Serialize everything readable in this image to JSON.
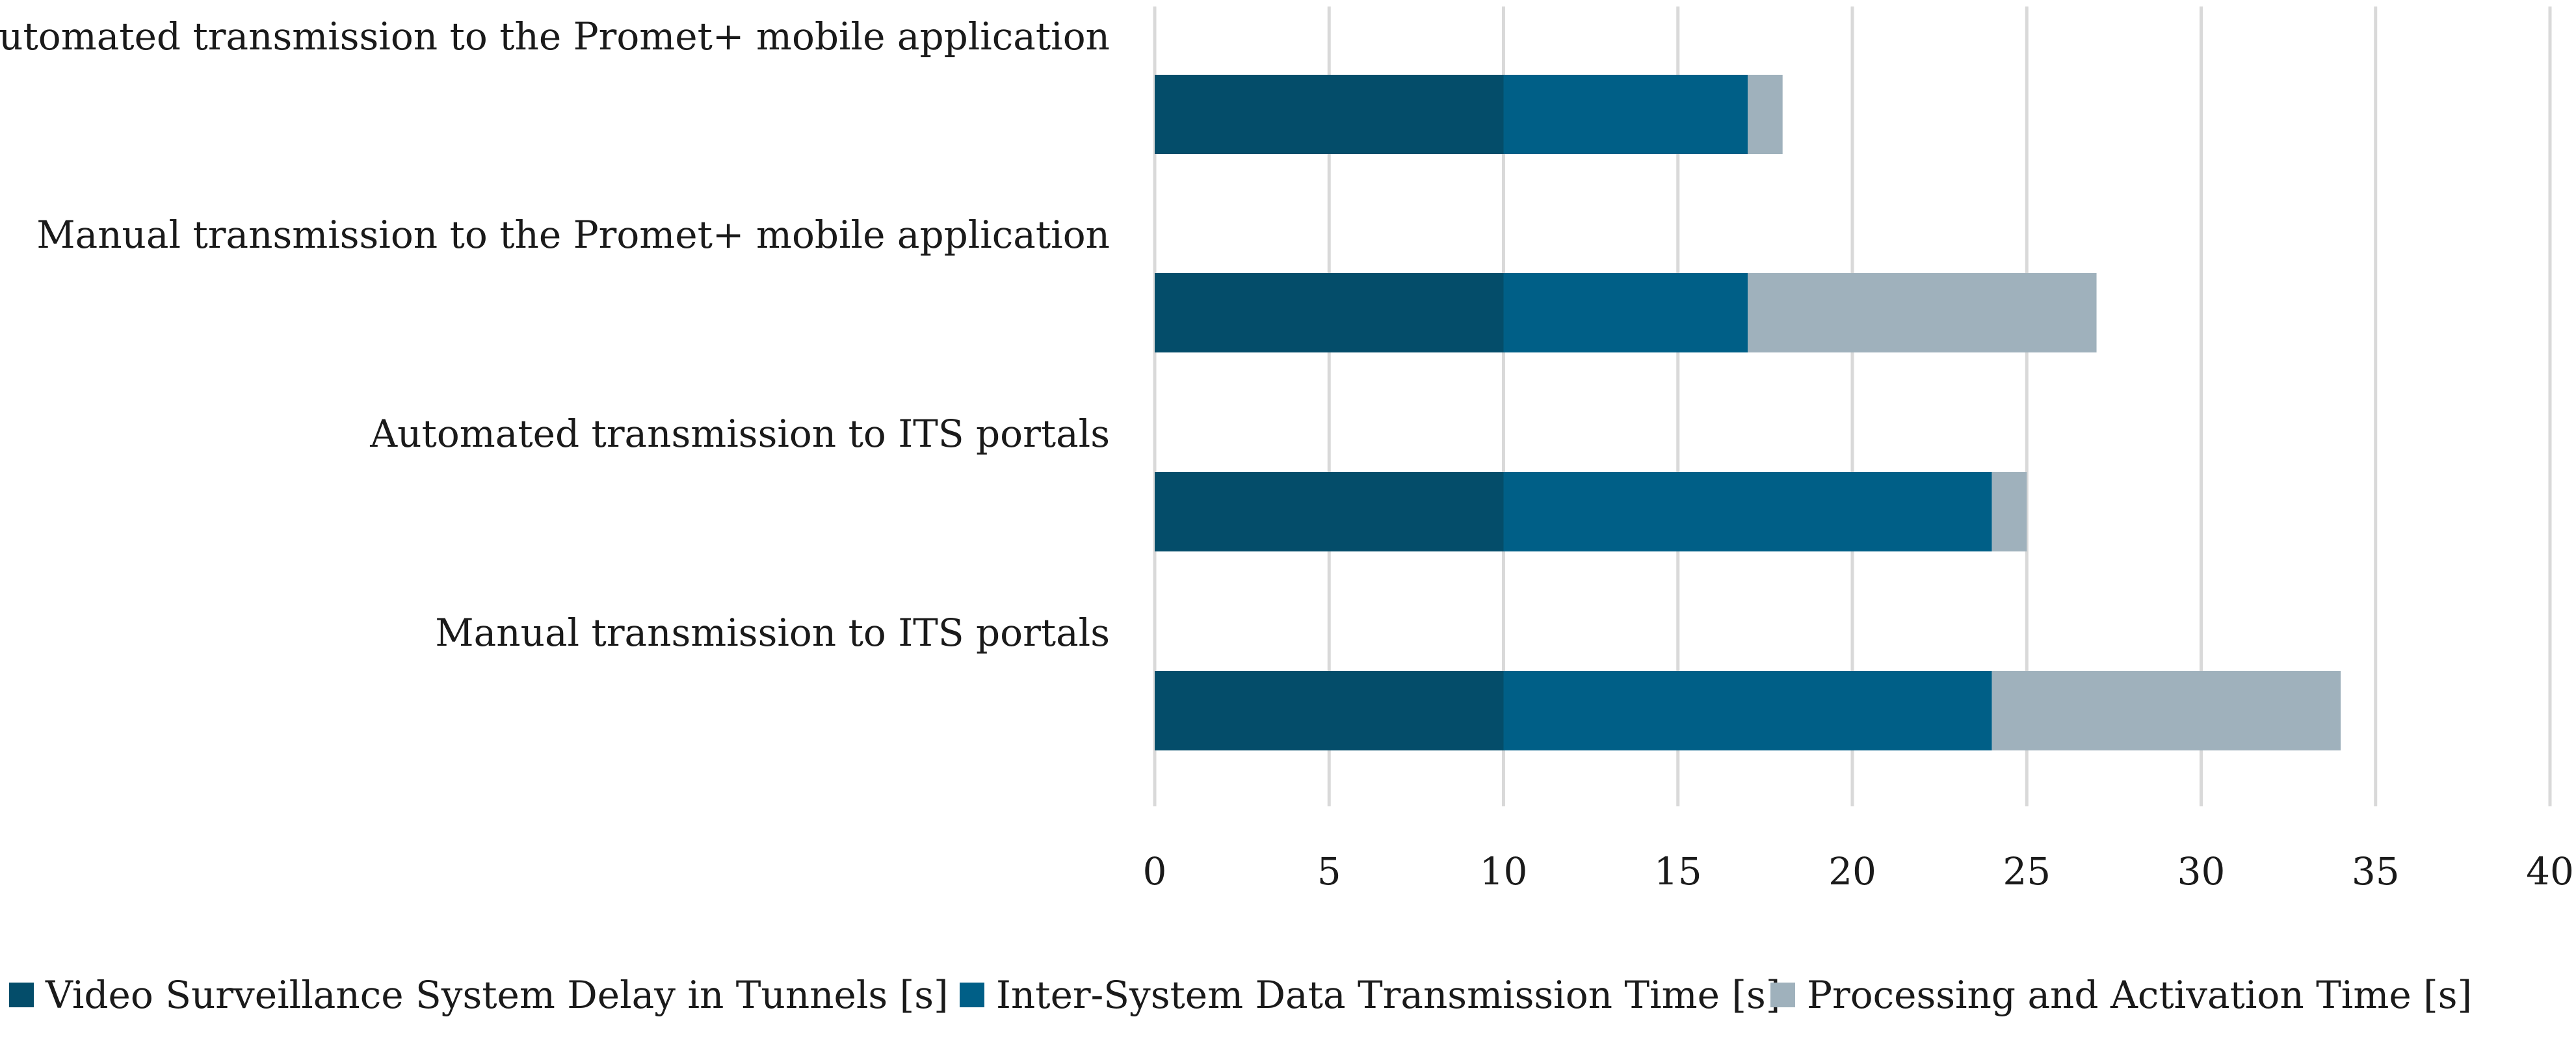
{
  "chart_data": {
    "type": "bar",
    "orientation": "horizontal",
    "stacked": true,
    "title": "",
    "xlabel": "",
    "ylabel": "",
    "xlim": [
      0,
      40
    ],
    "x_ticks": [
      0,
      5,
      10,
      15,
      20,
      25,
      30,
      35,
      40
    ],
    "grid": "vertical",
    "legend_position": "bottom",
    "categories": [
      "Automated transmission to the Promet+ mobile application",
      "Manual transmission to the Promet+ mobile application",
      "Automated transmission to ITS portals",
      "Manual transmission to ITS portals"
    ],
    "series": [
      {
        "name": "Video Surveillance System Delay in Tunnels [s]",
        "color": "#044d6a",
        "values": [
          10,
          10,
          10,
          10
        ]
      },
      {
        "name": "Inter-System Data Transmission Time [s]",
        "color": "#005f87",
        "values": [
          7,
          7,
          14,
          14
        ]
      },
      {
        "name": "Processing and Activation Time [s]",
        "color": "#9fb1bc",
        "values": [
          1,
          10,
          1,
          10
        ]
      }
    ]
  }
}
